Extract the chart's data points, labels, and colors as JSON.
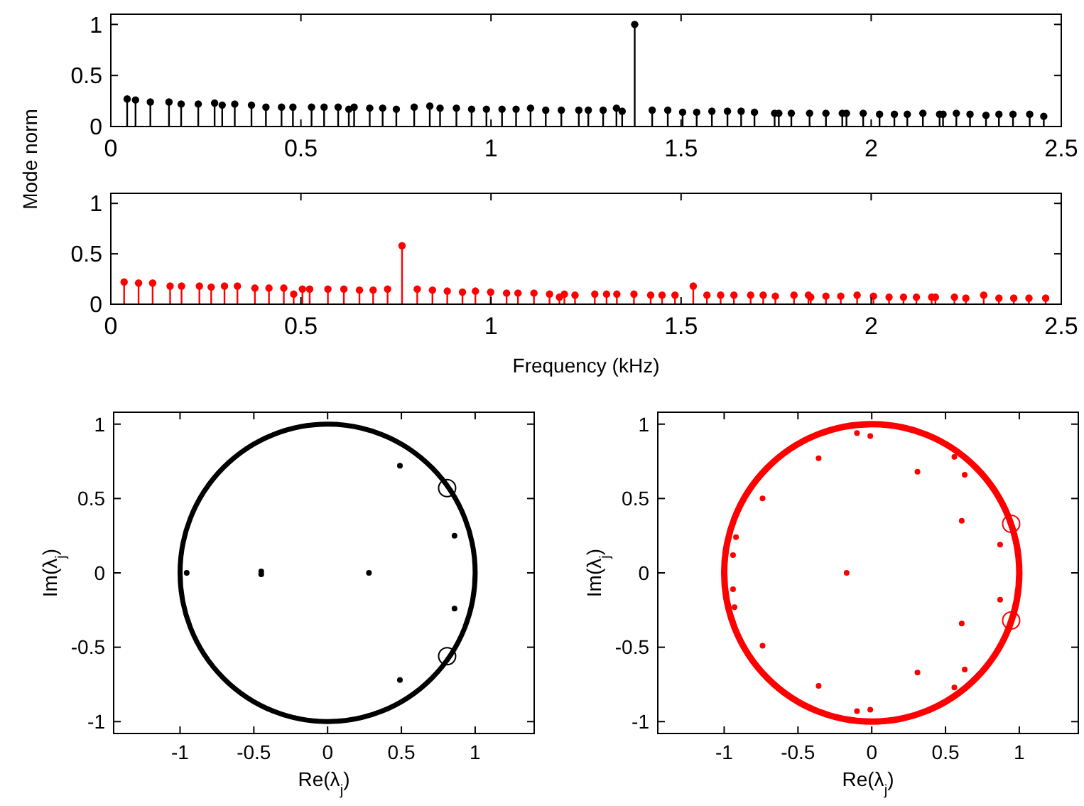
{
  "chart_data": [
    {
      "type": "lollipop",
      "ylabel": "Mode norm",
      "xlim": [
        0,
        2.5
      ],
      "ylim": [
        0,
        1.1
      ],
      "xticks": [
        0,
        0.5,
        1,
        1.5,
        2,
        2.5
      ],
      "yticks": [
        0,
        0.5,
        1
      ],
      "marker": "circle",
      "color": "#000000",
      "x": [
        0.043,
        0.065,
        0.104,
        0.153,
        0.185,
        0.23,
        0.273,
        0.293,
        0.326,
        0.37,
        0.408,
        0.449,
        0.479,
        0.528,
        0.561,
        0.598,
        0.626,
        0.64,
        0.681,
        0.715,
        0.751,
        0.798,
        0.839,
        0.866,
        0.909,
        0.949,
        0.988,
        1.029,
        1.066,
        1.104,
        1.144,
        1.185,
        1.231,
        1.256,
        1.295,
        1.33,
        1.345,
        1.378,
        1.424,
        1.465,
        1.504,
        1.541,
        1.581,
        1.622,
        1.658,
        1.693,
        1.746,
        1.757,
        1.79,
        1.838,
        1.881,
        1.924,
        1.935,
        1.979,
        2.022,
        2.061,
        2.095,
        2.136,
        2.18,
        2.189,
        2.224,
        2.26,
        2.302,
        2.336,
        2.373,
        2.417,
        2.454
      ],
      "values": [
        0.27,
        0.26,
        0.24,
        0.24,
        0.22,
        0.22,
        0.23,
        0.21,
        0.22,
        0.21,
        0.19,
        0.19,
        0.19,
        0.19,
        0.19,
        0.19,
        0.17,
        0.19,
        0.18,
        0.18,
        0.17,
        0.19,
        0.2,
        0.18,
        0.18,
        0.17,
        0.17,
        0.17,
        0.17,
        0.18,
        0.16,
        0.16,
        0.16,
        0.16,
        0.16,
        0.18,
        0.15,
        1.0,
        0.16,
        0.16,
        0.14,
        0.14,
        0.15,
        0.15,
        0.15,
        0.14,
        0.13,
        0.13,
        0.13,
        0.13,
        0.13,
        0.13,
        0.13,
        0.13,
        0.12,
        0.12,
        0.12,
        0.13,
        0.12,
        0.12,
        0.13,
        0.12,
        0.11,
        0.12,
        0.12,
        0.12,
        0.1
      ]
    },
    {
      "type": "lollipop",
      "xlabel": "Frequency (kHz)",
      "xlim": [
        0,
        2.5
      ],
      "ylim": [
        0,
        1.1
      ],
      "xticks": [
        0,
        0.5,
        1,
        1.5,
        2,
        2.5
      ],
      "yticks": [
        0,
        0.5,
        1
      ],
      "marker": "circle",
      "color": "#ff0000",
      "x": [
        0.035,
        0.073,
        0.11,
        0.156,
        0.186,
        0.233,
        0.264,
        0.299,
        0.333,
        0.379,
        0.416,
        0.455,
        0.481,
        0.504,
        0.523,
        0.571,
        0.613,
        0.654,
        0.69,
        0.728,
        0.766,
        0.806,
        0.846,
        0.885,
        0.925,
        0.959,
        0.999,
        1.041,
        1.071,
        1.113,
        1.154,
        1.18,
        1.193,
        1.221,
        1.273,
        1.304,
        1.331,
        1.376,
        1.42,
        1.45,
        1.484,
        1.532,
        1.568,
        1.604,
        1.639,
        1.683,
        1.716,
        1.748,
        1.797,
        1.835,
        1.841,
        1.881,
        1.92,
        1.963,
        2.006,
        2.047,
        2.085,
        2.119,
        2.159,
        2.169,
        2.219,
        2.249,
        2.296,
        2.336,
        2.375,
        2.415,
        2.459
      ],
      "values": [
        0.22,
        0.21,
        0.21,
        0.18,
        0.18,
        0.18,
        0.17,
        0.18,
        0.18,
        0.16,
        0.16,
        0.16,
        0.1,
        0.15,
        0.15,
        0.15,
        0.15,
        0.14,
        0.14,
        0.15,
        0.58,
        0.15,
        0.14,
        0.13,
        0.12,
        0.13,
        0.12,
        0.11,
        0.11,
        0.11,
        0.1,
        0.07,
        0.1,
        0.09,
        0.1,
        0.1,
        0.1,
        0.1,
        0.09,
        0.09,
        0.09,
        0.18,
        0.09,
        0.09,
        0.09,
        0.09,
        0.09,
        0.08,
        0.09,
        0.09,
        0.07,
        0.08,
        0.08,
        0.09,
        0.08,
        0.07,
        0.07,
        0.07,
        0.07,
        0.07,
        0.07,
        0.06,
        0.09,
        0.06,
        0.06,
        0.06,
        0.06
      ]
    },
    {
      "type": "scatter",
      "xlabel": "Re(λ$_{j}$)",
      "ylabel": "Im(λ$_{j}$)",
      "xlim": [
        -1.45,
        1.4
      ],
      "ylim": [
        -1.08,
        1.08
      ],
      "xticks": [
        -1,
        -0.5,
        0,
        0.5,
        1
      ],
      "yticks": [
        -1,
        -0.5,
        0,
        0.5,
        1
      ],
      "series": [
        {
          "type": "scatter",
          "color": "#000000",
          "x": [
            0.49,
            0.86,
            0.28,
            -0.45,
            -0.45,
            0.86,
            0.49,
            -0.955
          ],
          "values": [
            0.72,
            0.25,
            0,
            0.01,
            -0.01,
            -0.24,
            -0.72,
            0
          ]
        },
        {
          "type": "scatter",
          "marker": "circle",
          "color": "#000000",
          "x": [
            0.81,
            0.81
          ],
          "values": [
            0.57,
            -0.56
          ]
        }
      ]
    },
    {
      "type": "scatter",
      "xlabel": "Re(λ$_{j}$)",
      "ylabel": "Im(λ$_{j}$)",
      "xlim": [
        -1.45,
        1.4
      ],
      "ylim": [
        -1.08,
        1.08
      ],
      "xticks": [
        -1,
        -0.5,
        0,
        0.5,
        1
      ],
      "yticks": [
        -1,
        -0.5,
        0,
        0.5,
        1
      ],
      "series": [
        {
          "type": "scatter",
          "color": "#ff0000",
          "x": [
            -0.1,
            -0.01,
            -0.36,
            0.56,
            0.31,
            0.63,
            -0.74,
            0.61,
            -0.92,
            -0.94,
            0.87,
            -0.17,
            -0.94,
            -0.93,
            0.87,
            0.61,
            -0.74,
            0.63,
            0.31,
            0.56,
            -0.36,
            -0.1,
            -0.01
          ],
          "values": [
            0.94,
            0.92,
            0.77,
            0.78,
            0.68,
            0.66,
            0.5,
            0.35,
            0.24,
            0.12,
            0.19,
            0,
            -0.11,
            -0.23,
            -0.18,
            -0.34,
            -0.49,
            -0.65,
            -0.67,
            -0.77,
            -0.76,
            -0.93,
            -0.92
          ]
        },
        {
          "type": "scatter",
          "marker": "circle",
          "color": "#ff0000",
          "x": [
            0.945,
            0.945
          ],
          "values": [
            0.33,
            -0.32
          ]
        }
      ]
    }
  ]
}
